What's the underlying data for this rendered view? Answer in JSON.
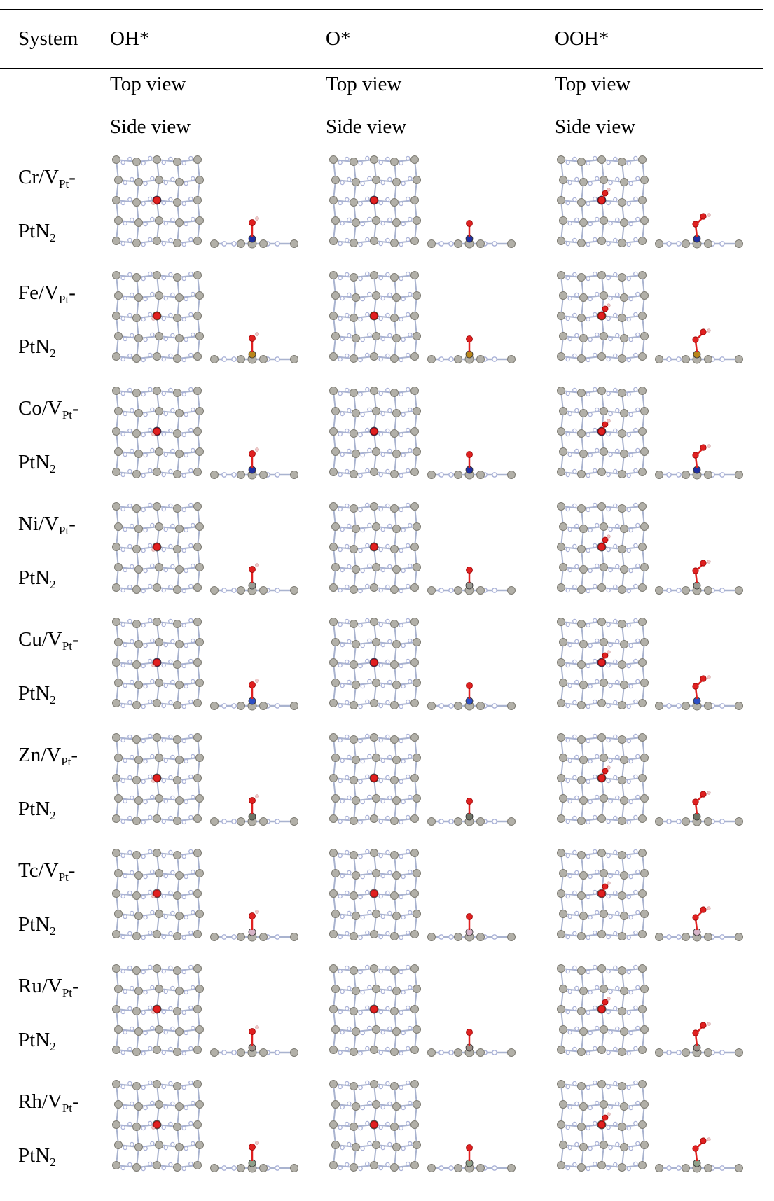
{
  "header": {
    "system": "System",
    "columns": [
      "OH*",
      "O*",
      "OOH*"
    ]
  },
  "view_labels": {
    "top": "Top view",
    "side": "Side view"
  },
  "colors": {
    "pt_atom": "#b2b0a8",
    "n_atom": "#aab2d8",
    "bond": "#a9b3cf",
    "oxygen": "#e02020",
    "hydrogen": "#f2c7c7"
  },
  "rows": [
    {
      "metal": "Cr",
      "line1_prefix": "Cr/V",
      "line1_sub": "Pt",
      "line1_suffix": "-",
      "line2": "PtN",
      "line2_sub": "2",
      "metal_color": "#1f2fa0"
    },
    {
      "metal": "Fe",
      "line1_prefix": "Fe/V",
      "line1_sub": "Pt",
      "line1_suffix": "-",
      "line2": "PtN",
      "line2_sub": "2",
      "metal_color": "#b8861b"
    },
    {
      "metal": "Co",
      "line1_prefix": "Co/V",
      "line1_sub": "Pt",
      "line1_suffix": "-",
      "line2": "PtN",
      "line2_sub": "2",
      "metal_color": "#1f2fa0"
    },
    {
      "metal": "Ni",
      "line1_prefix": "Ni/V",
      "line1_sub": "Pt",
      "line1_suffix": "-",
      "line2": "PtN",
      "line2_sub": "2",
      "metal_color": "#9a9a92"
    },
    {
      "metal": "Cu",
      "line1_prefix": "Cu/V",
      "line1_sub": "Pt",
      "line1_suffix": "-",
      "line2": "PtN",
      "line2_sub": "2",
      "metal_color": "#2d4fc4"
    },
    {
      "metal": "Zn",
      "line1_prefix": "Zn/V",
      "line1_sub": "Pt",
      "line1_suffix": "-",
      "line2": "PtN",
      "line2_sub": "2",
      "metal_color": "#6e7466"
    },
    {
      "metal": "Tc",
      "line1_prefix": "Tc/V",
      "line1_sub": "Pt",
      "line1_suffix": "-",
      "line2": "PtN",
      "line2_sub": "2",
      "metal_color": "#d6b4c8"
    },
    {
      "metal": "Ru",
      "line1_prefix": "Ru/V",
      "line1_sub": "Pt",
      "line1_suffix": "-",
      "line2": "PtN",
      "line2_sub": "2",
      "metal_color": "#9a8e86"
    },
    {
      "metal": "Rh",
      "line1_prefix": "Rh/V",
      "line1_sub": "Pt",
      "line1_suffix": "-",
      "line2": "PtN",
      "line2_sub": "2",
      "metal_color": "#8fa08a"
    }
  ]
}
